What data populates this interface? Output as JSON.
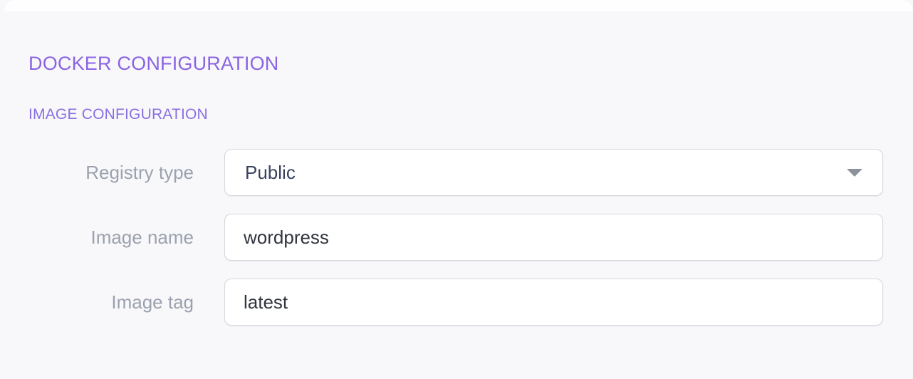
{
  "header": {
    "title": "DOCKER CONFIGURATION",
    "subtitle": "IMAGE CONFIGURATION"
  },
  "form": {
    "registry_type": {
      "label": "Registry type",
      "value": "Public"
    },
    "image_name": {
      "label": "Image name",
      "value": "wordpress"
    },
    "image_tag": {
      "label": "Image tag",
      "value": "latest"
    }
  },
  "icons": {
    "registry_type_caret": "chevron-down-icon"
  },
  "colors": {
    "accent_purple": "#8a64e3",
    "subtitle_purple": "#8a6fe0",
    "label_gray": "#9ba1ad",
    "select_text": "#3a4160",
    "input_text": "#30343c",
    "field_border": "#d5d7dd",
    "field_bg": "#ffffff",
    "page_bg": "#f8f8fb",
    "caret_gray": "#8d9199"
  }
}
